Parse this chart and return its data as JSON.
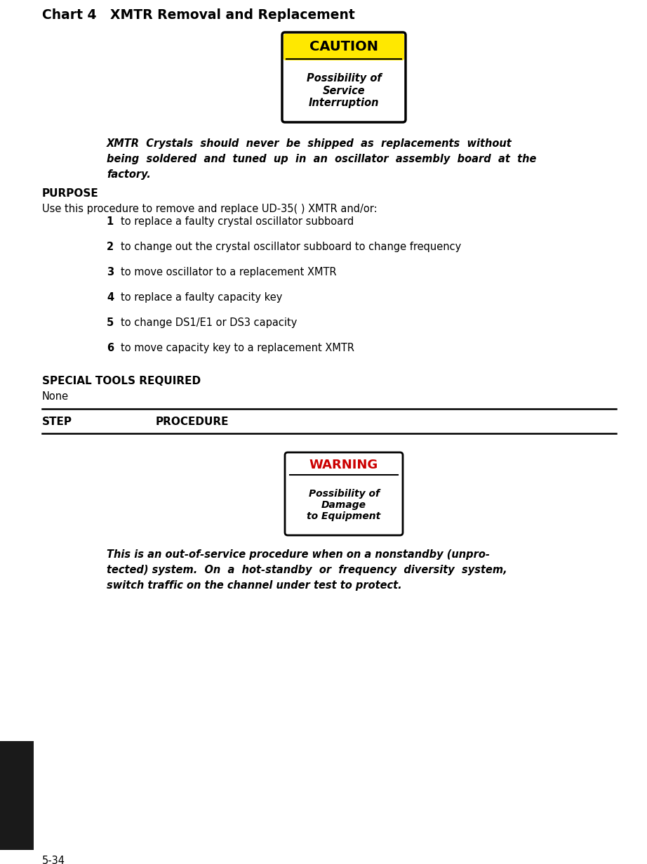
{
  "title": "Chart 4   XMTR Removal and Replacement",
  "caution_label": "CAUTION",
  "caution_text": "Possibility of\nService\nInterruption",
  "caution_bg": "#FFE800",
  "warning_label": "WARNING",
  "warning_text": "Possibility of\nDamage\nto Equipment",
  "warning_label_color": "#CC0000",
  "italic_line1": "XMTR  Crystals  should  never  be  shipped  as  replacements  without",
  "italic_line2": "being  soldered  and  tuned  up  in  an  oscillator  assembly  board  at  the",
  "italic_line3": "factory.",
  "purpose_header": "PURPOSE",
  "purpose_intro": "Use this procedure to remove and replace UD-35( ) XMTR and/or:",
  "numbered_items": [
    "to replace a faulty crystal oscillator subboard",
    "to change out the crystal oscillator subboard to change frequency",
    "to move oscillator to a replacement XMTR",
    "to replace a faulty capacity key",
    "to change DS1/E1 or DS3 capacity",
    "to move capacity key to a replacement XMTR"
  ],
  "special_tools_header": "SPECIAL TOOLS REQUIRED",
  "special_tools_text": "None",
  "step_header": "STEP",
  "procedure_header": "PROCEDURE",
  "warning_body_line1": "This is an out-of-service procedure when on a nonstandby (unpro-",
  "warning_body_line2": "tected) system.  On  a  hot-standby  or  frequency  diversity  system,",
  "warning_body_line3": "switch traffic on the channel under test to protect.",
  "page_number": "5-34",
  "bg_color": "#FFFFFF",
  "text_color": "#000000",
  "sidebar_color": "#1A1A1A",
  "fig_width": 9.22,
  "fig_height": 12.3,
  "dpi": 100
}
